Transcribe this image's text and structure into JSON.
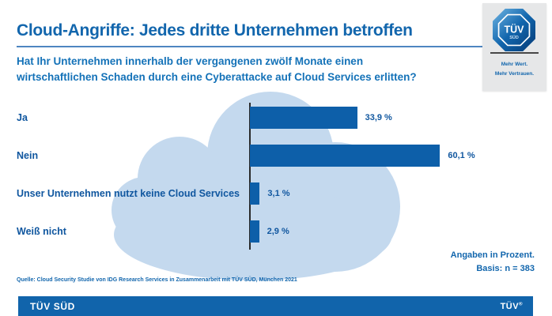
{
  "header": {
    "title": "Cloud-Angriffe: Jedes dritte Unternehmen betroffen",
    "question_line1": "Hat Ihr Unternehmen innerhalb der vergangenen zwölf Monate einen",
    "question_line2": "wirtschaftlichen Schaden durch eine Cyberattacke auf Cloud Services erlitten?"
  },
  "logo_box": {
    "logo_text_top": "TÜV",
    "logo_text_bottom": "SÜD",
    "claim_line1": "Mehr Wert.",
    "claim_line2": "Mehr Vertrauen."
  },
  "chart_data": {
    "type": "bar",
    "orientation": "horizontal",
    "title": "Hat Ihr Unternehmen innerhalb der vergangenen zwölf Monate einen wirtschaftlichen Schaden durch eine Cyberattacke auf Cloud Services erlitten?",
    "categories": [
      "Ja",
      "Nein",
      "Unser Unternehmen nutzt keine Cloud Services",
      "Weiß nicht"
    ],
    "values": [
      33.9,
      60.1,
      3.1,
      2.9
    ],
    "value_labels": [
      "33,9 %",
      "60,1 %",
      "3,1 %",
      "2,9 %"
    ],
    "xlim": [
      0,
      100
    ],
    "grid": false,
    "legend": "none",
    "bar_color": "#0d5fa9",
    "background_shape": "cloud",
    "cloud_color": "#c4d9ee"
  },
  "notes": {
    "unit_note_line1": "Angaben in Prozent.",
    "unit_note_line2": "Basis: n = 383",
    "source": "Quelle: Cloud Security Studie von IDG Research Services in Zusammenarbeit mit TÜV SÜD, München 2021"
  },
  "footer": {
    "brand": "TÜV SÜD",
    "trademark": "TÜV",
    "trademark_symbol": "®"
  },
  "colors": {
    "primary_blue": "#1266ad",
    "bar_blue": "#0d5fa9",
    "cloud_blue": "#c4d9ee",
    "title_rule_blue": "#4e86c1",
    "footer_blue": "#1164ab",
    "label_blue": "#0f569f",
    "logo_box_gray": "#e6e7e8",
    "axis_dark": "#2a2a2a"
  }
}
